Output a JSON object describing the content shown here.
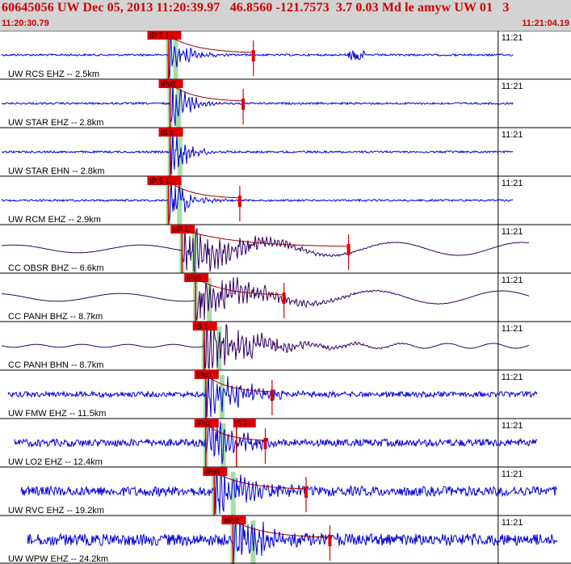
{
  "header": {
    "title": "60645056 UW Dec 05, 2013 11:20:39.97   46.8560 -121.7573  3.7 0.03 Md le amyw UW 01   3",
    "start_time": "11:20:30.79",
    "end_time": "11:21:04.19"
  },
  "colors": {
    "header_bg": "#d3d3d3",
    "header_text": "#cc0000",
    "trace_uw": "#0000dd",
    "trace_cc": "#330066",
    "pick": "#dd0000",
    "pick_window": "#9fd89f",
    "coda": "#990000"
  },
  "chart_data": {
    "type": "line",
    "title": "60645056 UW Dec 05, 2013 11:20:39.97   46.8560 -121.7573  3.7 0.03 Md le amyw UW 01   3",
    "x_range": [
      "11:20:30.79",
      "11:21:04.19"
    ],
    "minute_tick": "11:21",
    "grid": true,
    "channels": [
      {
        "label": "UW RCS EHZ -- 2.5km",
        "pick": "iP:S 1",
        "network": "UW",
        "p_time": "11:20:40.6",
        "coda_end": "11:20:45.6"
      },
      {
        "label": "UW STAR EHZ -- 2.8km",
        "pick": "iPc0",
        "network": "UW",
        "p_time": "11:20:40.7",
        "coda_end": "11:20:45.0"
      },
      {
        "label": "UW STAR EHN -- 2.8km",
        "pick": "iS 1",
        "network": "UW",
        "p_time": "11:20:40.7",
        "coda_end": ""
      },
      {
        "label": "UW RCM EHZ -- 2.9km",
        "pick": "iP:S 1",
        "network": "UW",
        "p_time": "11:20:40.6",
        "coda_end": "11:20:44.8"
      },
      {
        "label": "CC OBSR BHZ -- 6.6km",
        "pick": "eP 2",
        "network": "CC",
        "p_time": "11:20:41.4",
        "coda_end": "11:20:51.2"
      },
      {
        "label": "CC PANH BHZ -- 8.7km",
        "pick": "iPc0",
        "network": "CC",
        "p_time": "11:20:42.2",
        "coda_end": "11:20:47.4"
      },
      {
        "label": "CC PANH BHN -- 8.7km",
        "pick": "iS 1",
        "network": "CC",
        "p_time": "11:20:42.7",
        "coda_end": ""
      },
      {
        "label": "UW FMW EHZ -- 11.5km",
        "pick": "iPc0",
        "network": "UW",
        "p_time": "11:20:42.8",
        "coda_end": "11:20:46.7"
      },
      {
        "label": "UW LO2 EHZ -- 12.4km",
        "pick": "iPc1",
        "pick2": "iS 2",
        "network": "UW",
        "p_time": "11:20:42.8",
        "coda_end": "11:20:46.3"
      },
      {
        "label": "UW RVC EHZ -- 19.2km",
        "pick": "iPc0",
        "network": "UW",
        "p_time": "11:20:43.3",
        "coda_end": "11:20:48.7"
      },
      {
        "label": "UW WPW EHZ -- 24.2km",
        "pick": "eP 2",
        "network": "UW",
        "p_time": "11:20:44.4",
        "coda_end": "11:20:50.1"
      }
    ]
  }
}
